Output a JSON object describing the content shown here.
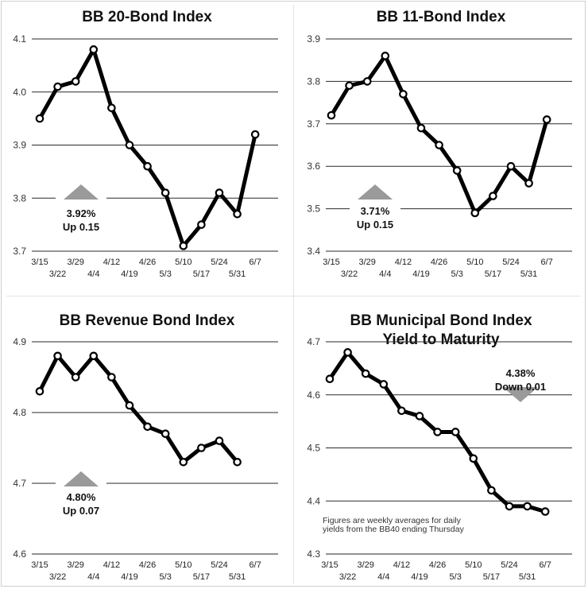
{
  "chart_data": [
    {
      "type": "line",
      "title": "BB 20-Bond Index",
      "title2": "",
      "yticks": [
        3.7,
        3.8,
        3.9,
        4.0,
        4.1
      ],
      "ytick_labels": [
        "3.7",
        "3.8",
        "3.9",
        "4.0",
        "4.1"
      ],
      "ylim": [
        3.7,
        4.1
      ],
      "categories": [
        "3/15",
        "3/22",
        "3/29",
        "4/4",
        "4/12",
        "4/19",
        "4/26",
        "5/3",
        "5/10",
        "5/17",
        "5/24",
        "5/31",
        "6/7"
      ],
      "values": [
        3.95,
        4.01,
        4.02,
        4.08,
        3.97,
        3.9,
        3.86,
        3.81,
        3.71,
        3.75,
        3.81,
        3.77,
        3.92
      ],
      "callout": {
        "value": "3.92%",
        "change": "Up 0.15",
        "direction": "up"
      },
      "note": []
    },
    {
      "type": "line",
      "title": "BB 11-Bond Index",
      "title2": "",
      "yticks": [
        3.4,
        3.5,
        3.6,
        3.7,
        3.8,
        3.9
      ],
      "ytick_labels": [
        "3.4",
        "3.5",
        "3.6",
        "3.7",
        "3.8",
        "3.9"
      ],
      "ylim": [
        3.4,
        3.9
      ],
      "categories": [
        "3/15",
        "3/22",
        "3/29",
        "4/4",
        "4/12",
        "4/19",
        "4/26",
        "5/3",
        "5/10",
        "5/17",
        "5/24",
        "5/31",
        "6/7"
      ],
      "values": [
        3.72,
        3.79,
        3.8,
        3.86,
        3.77,
        3.69,
        3.65,
        3.59,
        3.49,
        3.53,
        3.6,
        3.56,
        3.71
      ],
      "callout": {
        "value": "3.71%",
        "change": "Up 0.15",
        "direction": "up"
      },
      "note": []
    },
    {
      "type": "line",
      "title": "BB Revenue Bond Index",
      "title2": "",
      "yticks": [
        4.6,
        4.7,
        4.8,
        4.9
      ],
      "ytick_labels": [
        "4.6",
        "4.7",
        "4.8",
        "4.9"
      ],
      "ylim": [
        4.6,
        4.9
      ],
      "categories": [
        "3/15",
        "3/22",
        "3/29",
        "4/4",
        "4/12",
        "4/19",
        "4/26",
        "5/3",
        "5/10",
        "5/17",
        "5/24",
        "5/31",
        "6/7"
      ],
      "values": [
        4.83,
        4.88,
        4.85,
        4.88,
        4.85,
        4.81,
        4.78,
        4.77,
        4.73,
        4.75,
        4.76,
        4.73,
        null
      ],
      "callout": {
        "value": "4.80%",
        "change": "Up 0.07",
        "direction": "up"
      },
      "note": []
    },
    {
      "type": "line",
      "title": "BB Municipal Bond Index",
      "title2": "Yield to Maturity",
      "yticks": [
        4.3,
        4.4,
        4.5,
        4.6,
        4.7
      ],
      "ytick_labels": [
        "4.3",
        "4.4",
        "4.5",
        "4.6",
        "4.7"
      ],
      "ylim": [
        4.3,
        4.7
      ],
      "categories": [
        "3/15",
        "3/22",
        "3/29",
        "4/4",
        "4/12",
        "4/19",
        "4/26",
        "5/3",
        "5/10",
        "5/17",
        "5/24",
        "5/31",
        "6/7"
      ],
      "values": [
        4.63,
        4.68,
        4.64,
        4.62,
        4.57,
        4.56,
        4.53,
        4.53,
        4.48,
        4.42,
        4.39,
        4.39,
        4.38
      ],
      "callout": {
        "value": "4.38%",
        "change": "Down 0.01",
        "direction": "down"
      },
      "note": [
        "Figures are weekly averages for daily",
        "yields from the BB40 ending Thursday"
      ]
    }
  ]
}
